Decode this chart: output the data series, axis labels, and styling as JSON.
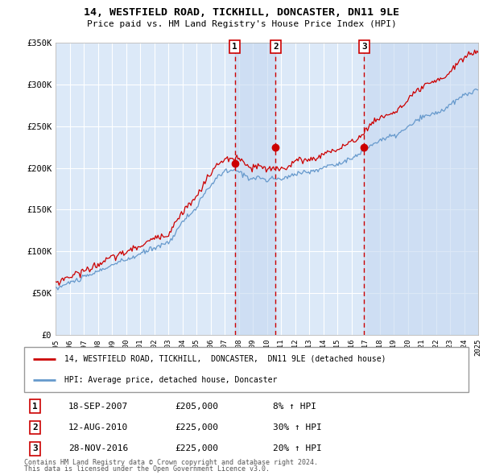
{
  "title": "14, WESTFIELD ROAD, TICKHILL, DONCASTER, DN11 9LE",
  "subtitle": "Price paid vs. HM Land Registry's House Price Index (HPI)",
  "red_label": "14, WESTFIELD ROAD, TICKHILL,  DONCASTER,  DN11 9LE (detached house)",
  "blue_label": "HPI: Average price, detached house, Doncaster",
  "sale1_date": "18-SEP-2007",
  "sale1_price": 205000,
  "sale1_hpi": "8% ↑ HPI",
  "sale1_x": 2007.72,
  "sale2_date": "12-AUG-2010",
  "sale2_price": 225000,
  "sale2_hpi": "30% ↑ HPI",
  "sale2_x": 2010.62,
  "sale3_date": "28-NOV-2016",
  "sale3_price": 225000,
  "sale3_hpi": "20% ↑ HPI",
  "sale3_x": 2016.91,
  "xmin": 1995,
  "xmax": 2025,
  "ymin": 0,
  "ymax": 350000,
  "yticks": [
    0,
    50000,
    100000,
    150000,
    200000,
    250000,
    300000,
    350000
  ],
  "plot_bg": "#dce9f8",
  "red_color": "#cc0000",
  "blue_color": "#6699cc",
  "grid_color": "#ffffff",
  "span_color": "#c5d8f0",
  "footnote1": "Contains HM Land Registry data © Crown copyright and database right 2024.",
  "footnote2": "This data is licensed under the Open Government Licence v3.0."
}
